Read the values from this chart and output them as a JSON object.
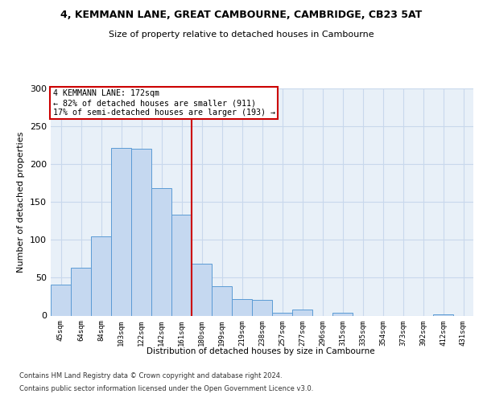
{
  "title": "4, KEMMANN LANE, GREAT CAMBOURNE, CAMBRIDGE, CB23 5AT",
  "subtitle": "Size of property relative to detached houses in Cambourne",
  "xlabel": "Distribution of detached houses by size in Cambourne",
  "ylabel": "Number of detached properties",
  "categories": [
    "45sqm",
    "64sqm",
    "84sqm",
    "103sqm",
    "122sqm",
    "142sqm",
    "161sqm",
    "180sqm",
    "199sqm",
    "219sqm",
    "238sqm",
    "257sqm",
    "277sqm",
    "296sqm",
    "315sqm",
    "335sqm",
    "354sqm",
    "373sqm",
    "392sqm",
    "412sqm",
    "431sqm"
  ],
  "values": [
    41,
    63,
    105,
    221,
    220,
    168,
    133,
    68,
    39,
    22,
    21,
    4,
    8,
    0,
    4,
    0,
    0,
    0,
    0,
    2,
    0
  ],
  "bar_color": "#c5d8f0",
  "bar_edge_color": "#5b9bd5",
  "vline_color": "#cc0000",
  "vline_x": 6.5,
  "annotation_text": "4 KEMMANN LANE: 172sqm\n← 82% of detached houses are smaller (911)\n17% of semi-detached houses are larger (193) →",
  "annotation_box_facecolor": "#ffffff",
  "annotation_box_edgecolor": "#cc0000",
  "grid_color": "#c8d8ec",
  "bg_color": "#e8f0f8",
  "fig_bg_color": "#ffffff",
  "ylim": [
    0,
    300
  ],
  "yticks": [
    0,
    50,
    100,
    150,
    200,
    250,
    300
  ],
  "footer_line1": "Contains HM Land Registry data © Crown copyright and database right 2024.",
  "footer_line2": "Contains public sector information licensed under the Open Government Licence v3.0."
}
